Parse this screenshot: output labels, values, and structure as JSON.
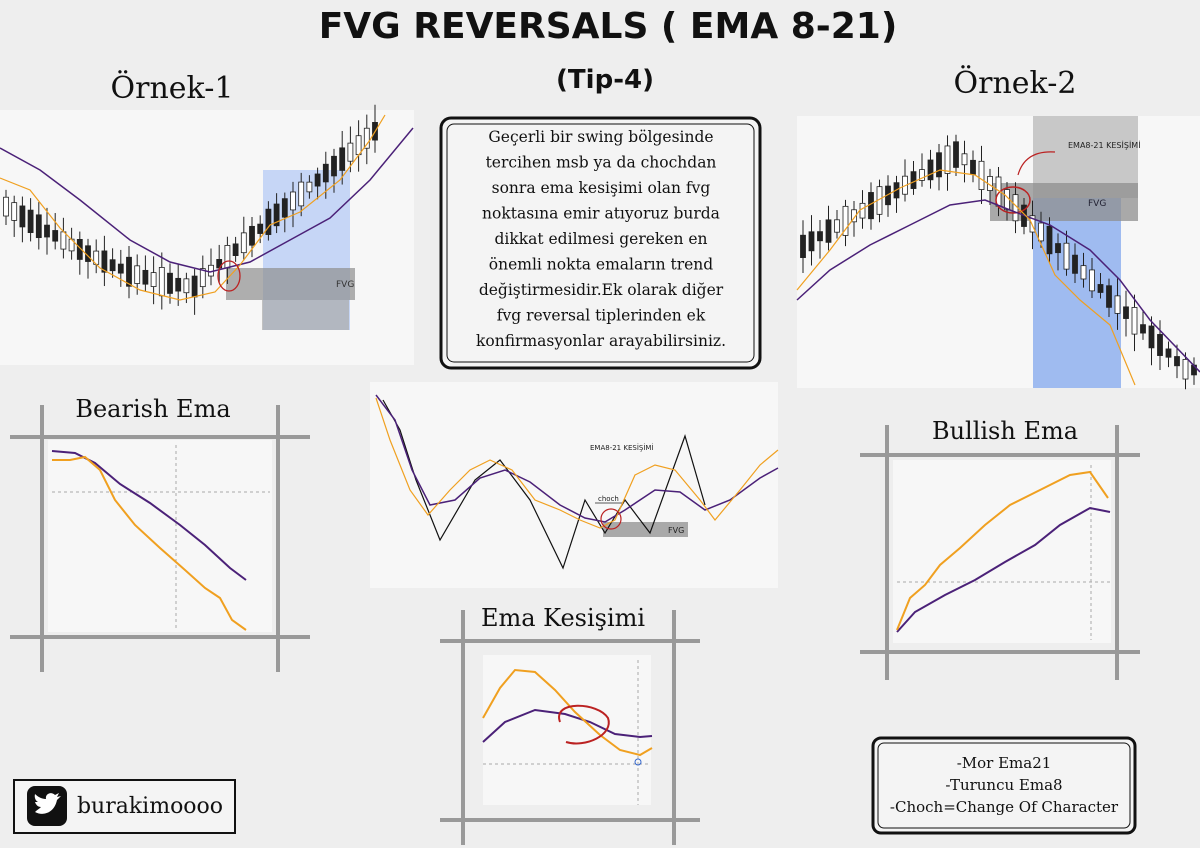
{
  "header": {
    "title": "FVG REVERSALS ( EMA 8-21)",
    "subtitle": "(Tip-4)"
  },
  "examples": [
    {
      "title": "Örnek-1",
      "fvg_label": "FVG"
    },
    {
      "title": "Örnek-2",
      "fvg_label": "FVG",
      "annotation": "EMA8-21 KESİŞİMİ"
    }
  ],
  "description": {
    "lines": [
      "Geçerli bir  swing bölgesinde",
      "tercihen msb ya da chochdan",
      "sonra ema kesişimi olan fvg",
      "noktasına emir atıyoruz burda",
      "dikkat edilmesi gereken en",
      "önemli nokta emaların trend",
      "değiştirmesidir.Ek olarak diğer",
      "fvg reversal tiplerinden ek",
      "konfirmasyonlar arayabilirsiniz."
    ]
  },
  "diagrams": {
    "bearish": {
      "title": "Bearish Ema"
    },
    "bullish": {
      "title": "Bullish Ema"
    },
    "crossover": {
      "title": "Ema Kesişimi"
    },
    "swing": {
      "annotation": "EMA8-21 KESİŞİMİ",
      "choch_label": "choch",
      "fvg_label": "FVG"
    }
  },
  "legend": {
    "lines": [
      "-Mor Ema21",
      "-Turuncu Ema8",
      "-Choch=Change Of Character"
    ]
  },
  "social": {
    "handle": "burakimoooo"
  }
}
